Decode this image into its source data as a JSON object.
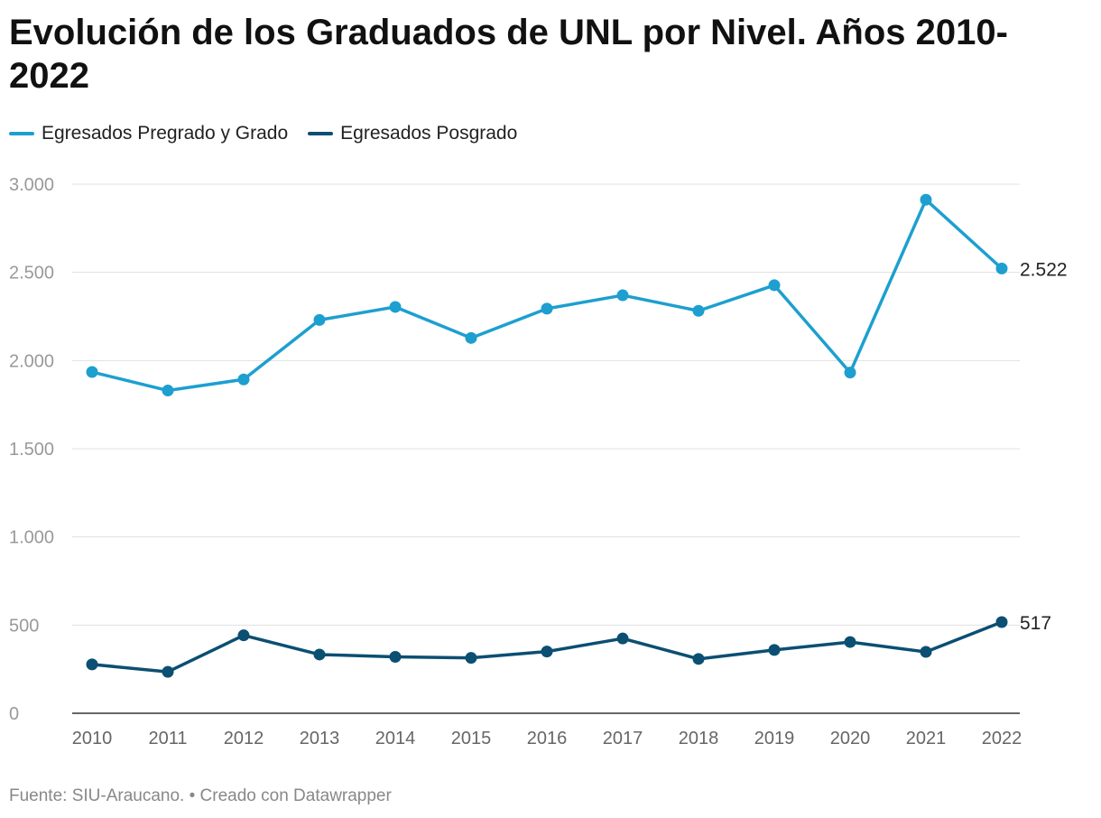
{
  "title": "Evolución de los Graduados de UNL por Nivel. Años 2010-2022",
  "footer": {
    "source": "Fuente: SIU-Araucano.",
    "separator": "•",
    "credit": "Creado con Datawrapper"
  },
  "colors": {
    "pregrado": "#1d9fd0",
    "posgrado": "#0b4f72",
    "grid": "#e0e0e0",
    "baseline": "#333333"
  },
  "chart_data": {
    "type": "line",
    "title": "Evolución de los Graduados de UNL por Nivel. Años 2010-2022",
    "x": [
      "2010",
      "2011",
      "2012",
      "2013",
      "2014",
      "2015",
      "2016",
      "2017",
      "2018",
      "2019",
      "2020",
      "2021",
      "2022"
    ],
    "ylim": [
      0,
      3000
    ],
    "yticks": [
      0,
      500,
      1000,
      1500,
      2000,
      2500,
      3000
    ],
    "ytick_labels": [
      "0",
      "500",
      "1.000",
      "1.500",
      "2.000",
      "2.500",
      "3.000"
    ],
    "grid": true,
    "legend_position": "top-left",
    "series": [
      {
        "name": "Egresados Pregrado y Grado",
        "color": "#1d9fd0",
        "values": [
          1935,
          1830,
          1893,
          2230,
          2304,
          2128,
          2294,
          2370,
          2282,
          2427,
          1932,
          2912,
          2522
        ],
        "end_label": "2.522"
      },
      {
        "name": "Egresados Posgrado",
        "color": "#0b4f72",
        "values": [
          277,
          235,
          442,
          333,
          320,
          314,
          350,
          424,
          308,
          359,
          404,
          348,
          517
        ],
        "end_label": "517"
      }
    ]
  }
}
